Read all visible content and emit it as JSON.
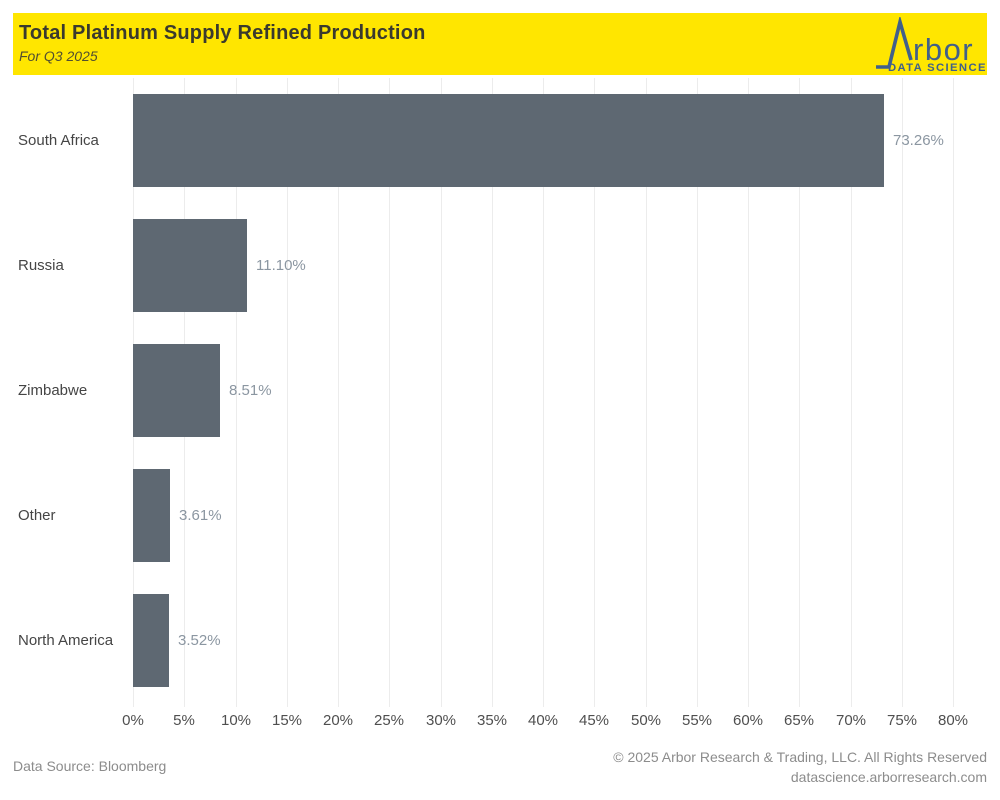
{
  "header": {
    "title": "Total Platinum Supply Refined Production",
    "subtitle": "For Q3 2025",
    "background_color": "#FFE600",
    "logo": {
      "brand_text": "rbor",
      "tagline": "DATA SCIENCE",
      "color": "#41608A",
      "icon": "arbor-peak-icon"
    }
  },
  "chart_data": {
    "type": "bar",
    "orientation": "horizontal",
    "title": "Total Platinum Supply Refined Production",
    "subtitle": "For Q3 2025",
    "categories": [
      "South Africa",
      "Russia",
      "Zimbabwe",
      "Other",
      "North America"
    ],
    "values": [
      73.26,
      11.1,
      8.51,
      3.61,
      3.52
    ],
    "value_labels": [
      "73.26%",
      "11.10%",
      "8.51%",
      "3.61%",
      "3.52%"
    ],
    "xlim": [
      0,
      80
    ],
    "x_tick_step": 5,
    "x_tick_labels": [
      "0%",
      "5%",
      "10%",
      "15%",
      "20%",
      "25%",
      "30%",
      "35%",
      "40%",
      "45%",
      "50%",
      "55%",
      "60%",
      "65%",
      "70%",
      "75%",
      "80%"
    ],
    "bar_color": "#5E6872",
    "grid": true,
    "gridline_color": "#ECECEC",
    "legend": "none"
  },
  "footer": {
    "source": "Data Source: Bloomberg",
    "copyright": "© 2025 Arbor Research & Trading, LLC. All Rights Reserved",
    "website": "datascience.arborresearch.com"
  }
}
